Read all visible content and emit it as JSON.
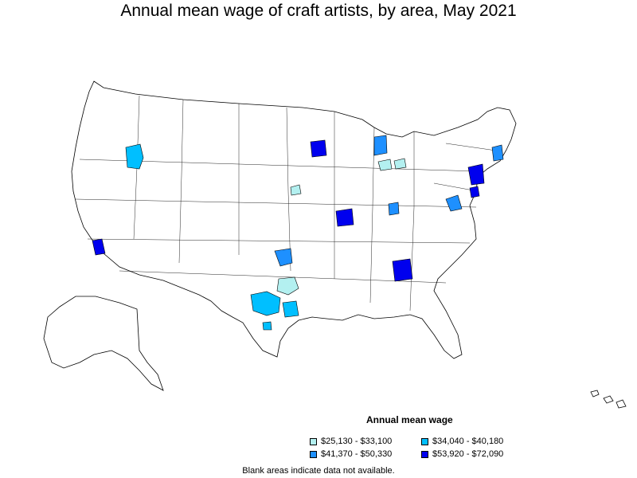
{
  "title": "Annual mean wage of craft artists, by area, May 2021",
  "legend": {
    "title": "Annual mean wage",
    "items": [
      {
        "label": "$25,130 - $33,100",
        "color": "#b3f0f0"
      },
      {
        "label": "$34,040 - $40,180",
        "color": "#00bfff"
      },
      {
        "label": "$41,370 - $50,330",
        "color": "#1e90ff"
      },
      {
        "label": "$53,920 - $72,090",
        "color": "#0000ee"
      }
    ]
  },
  "note": "Blank areas indicate data not available."
}
